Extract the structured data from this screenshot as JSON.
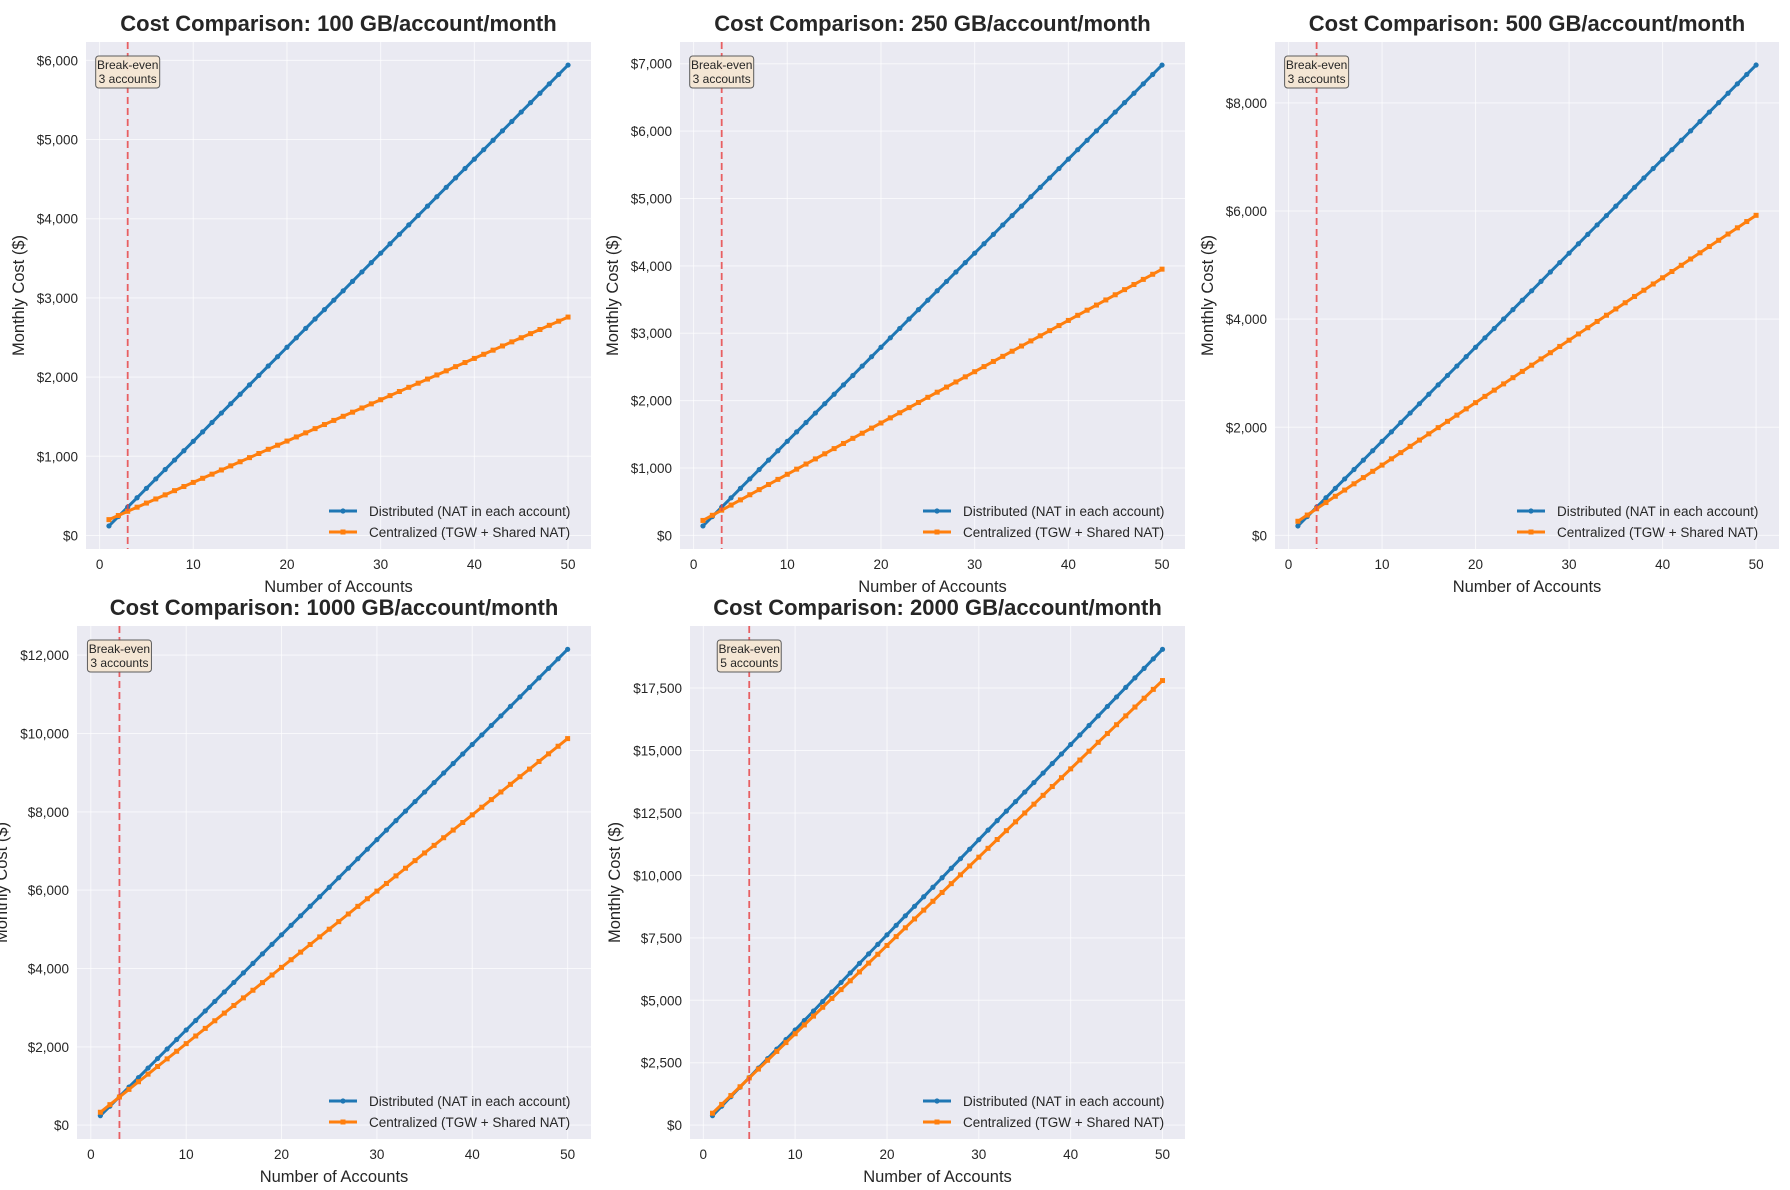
{
  "x_label": "Number of Accounts",
  "y_label": "Monthly Cost ($)",
  "legend": {
    "distributed": "Distributed (NAT in each account)",
    "centralized": "Centralized (TGW + Shared NAT)"
  },
  "colors": {
    "distributed": "#1f77b4",
    "centralized": "#ff7f0e",
    "break_even_line": "#e8474a",
    "axes_background": "#eaeaf2",
    "annotation_box": "#f5e6d3"
  },
  "chart_data": [
    {
      "type": "line",
      "title": "Cost Comparison: 100 GB/account/month",
      "xlim": [
        -1.45,
        52.45
      ],
      "ylim": [
        -171,
        6232
      ],
      "x_ticks": [
        0,
        10,
        20,
        30,
        40,
        50
      ],
      "y_ticks": [
        0,
        1000,
        2000,
        3000,
        4000,
        5000,
        6000
      ],
      "y_tick_labels": [
        "$0",
        "$1,000",
        "$2,000",
        "$3,000",
        "$4,000",
        "$5,000",
        "$6,000"
      ],
      "grid": true,
      "legend_placement": "lower-right",
      "break_even": {
        "x": 3,
        "label_line1": "Break-even",
        "label_line2": "3 accounts"
      },
      "series": [
        {
          "name": "Distributed (NAT in each account)",
          "marker": "circle",
          "values": [
            120,
            239,
            358,
            476,
            595,
            714,
            833,
            952,
            1070,
            1189,
            1308,
            1427,
            1546,
            1664,
            1783,
            1902,
            2021,
            2140,
            2258,
            2377,
            2496,
            2615,
            2734,
            2852,
            2971,
            3090,
            3209,
            3328,
            3446,
            3565,
            3684,
            3803,
            3922,
            4040,
            4159,
            4278,
            4397,
            4516,
            4634,
            4753,
            4872,
            4991,
            5110,
            5228,
            5347,
            5466,
            5585,
            5704,
            5822,
            5941
          ]
        },
        {
          "name": "Centralized (TGW + Shared NAT)",
          "marker": "square",
          "values": [
            200,
            252,
            305,
            357,
            409,
            461,
            513,
            566,
            618,
            670,
            722,
            774,
            827,
            879,
            931,
            983,
            1035,
            1088,
            1140,
            1192,
            1244,
            1296,
            1349,
            1401,
            1453,
            1505,
            1557,
            1610,
            1662,
            1714,
            1766,
            1818,
            1871,
            1923,
            1975,
            2027,
            2079,
            2132,
            2184,
            2236,
            2288,
            2340,
            2393,
            2445,
            2497,
            2549,
            2601,
            2654,
            2706,
            2758
          ]
        }
      ]
    },
    {
      "type": "line",
      "title": "Cost Comparison: 250 GB/account/month",
      "xlim": [
        -1.45,
        52.45
      ],
      "ylim": [
        -202,
        7322
      ],
      "x_ticks": [
        0,
        10,
        20,
        30,
        40,
        50
      ],
      "y_ticks": [
        0,
        1000,
        2000,
        3000,
        4000,
        5000,
        6000,
        7000
      ],
      "y_tick_labels": [
        "$0",
        "$1,000",
        "$2,000",
        "$3,000",
        "$4,000",
        "$5,000",
        "$6,000",
        "$7,000"
      ],
      "grid": true,
      "legend_placement": "lower-right",
      "break_even": {
        "x": 3,
        "label_line1": "Break-even",
        "label_line2": "3 accounts"
      },
      "series": [
        {
          "name": "Distributed (NAT in each account)",
          "marker": "circle",
          "values": [
            140,
            279,
            419,
            558,
            698,
            838,
            977,
            1117,
            1256,
            1396,
            1536,
            1675,
            1815,
            1954,
            2094,
            2234,
            2373,
            2513,
            2652,
            2792,
            2932,
            3071,
            3211,
            3350,
            3490,
            3630,
            3769,
            3909,
            4048,
            4188,
            4328,
            4467,
            4607,
            4746,
            4886,
            5026,
            5165,
            5305,
            5444,
            5584,
            5724,
            5863,
            6003,
            6142,
            6282,
            6422,
            6561,
            6701,
            6840,
            6980
          ]
        },
        {
          "name": "Centralized (TGW + Shared NAT)",
          "marker": "square",
          "values": [
            222,
            298,
            374,
            450,
            527,
            603,
            679,
            755,
            831,
            907,
            983,
            1059,
            1135,
            1211,
            1288,
            1364,
            1440,
            1516,
            1592,
            1668,
            1744,
            1820,
            1896,
            1972,
            2049,
            2125,
            2201,
            2277,
            2353,
            2429,
            2505,
            2581,
            2657,
            2733,
            2810,
            2886,
            2962,
            3038,
            3114,
            3190,
            3266,
            3342,
            3418,
            3494,
            3571,
            3647,
            3723,
            3799,
            3875,
            3951
          ]
        }
      ]
    },
    {
      "type": "line",
      "title": "Cost Comparison: 500 GB/account/month",
      "xlim": [
        -1.45,
        52.45
      ],
      "ylim": [
        -252,
        9126
      ],
      "x_ticks": [
        0,
        10,
        20,
        30,
        40,
        50
      ],
      "y_ticks": [
        0,
        2000,
        4000,
        6000,
        8000
      ],
      "y_tick_labels": [
        "$0",
        "$2,000",
        "$4,000",
        "$6,000",
        "$8,000"
      ],
      "grid": true,
      "legend_placement": "lower-right",
      "break_even": {
        "x": 3,
        "label_line1": "Break-even",
        "label_line2": "3 accounts"
      },
      "series": [
        {
          "name": "Distributed (NAT in each account)",
          "marker": "circle",
          "values": [
            174,
            348,
            522,
            696,
            870,
            1044,
            1218,
            1392,
            1566,
            1740,
            1914,
            2088,
            2262,
            2436,
            2610,
            2784,
            2958,
            3132,
            3306,
            3480,
            3654,
            3828,
            4002,
            4176,
            4350,
            4524,
            4698,
            4872,
            5046,
            5220,
            5394,
            5568,
            5742,
            5916,
            6090,
            6264,
            6438,
            6612,
            6786,
            6960,
            7134,
            7308,
            7482,
            7656,
            7830,
            8004,
            8178,
            8352,
            8526,
            8700
          ]
        },
        {
          "name": "Centralized (TGW + Shared NAT)",
          "marker": "square",
          "values": [
            261,
            376,
            492,
            607,
            723,
            838,
            954,
            1069,
            1185,
            1300,
            1416,
            1531,
            1647,
            1762,
            1878,
            1993,
            2109,
            2224,
            2340,
            2455,
            2571,
            2686,
            2802,
            2917,
            3033,
            3148,
            3264,
            3379,
            3495,
            3610,
            3726,
            3841,
            3957,
            4072,
            4188,
            4303,
            4419,
            4534,
            4650,
            4765,
            4881,
            4996,
            5112,
            5227,
            5343,
            5458,
            5574,
            5689,
            5805,
            5920
          ]
        }
      ]
    },
    {
      "type": "line",
      "title": "Cost Comparison: 1000 GB/account/month",
      "xlim": [
        -1.45,
        52.45
      ],
      "ylim": [
        -353,
        12745
      ],
      "x_ticks": [
        0,
        10,
        20,
        30,
        40,
        50
      ],
      "y_ticks": [
        0,
        2000,
        4000,
        6000,
        8000,
        10000,
        12000
      ],
      "y_tick_labels": [
        "$0",
        "$2,000",
        "$4,000",
        "$6,000",
        "$8,000",
        "$10,000",
        "$12,000"
      ],
      "grid": true,
      "legend_placement": "lower-right",
      "break_even": {
        "x": 3,
        "label_line1": "Break-even",
        "label_line2": "3 accounts"
      },
      "series": [
        {
          "name": "Distributed (NAT in each account)",
          "marker": "circle",
          "values": [
            243,
            486,
            729,
            972,
            1215,
            1458,
            1701,
            1944,
            2187,
            2430,
            2673,
            2916,
            3159,
            3402,
            3645,
            3888,
            4131,
            4374,
            4617,
            4860,
            5103,
            5346,
            5589,
            5832,
            6075,
            6318,
            6561,
            6804,
            7047,
            7290,
            7533,
            7776,
            8019,
            8262,
            8505,
            8748,
            8991,
            9234,
            9477,
            9720,
            9963,
            10206,
            10449,
            10692,
            10935,
            11178,
            11421,
            11664,
            11907,
            12150
          ]
        },
        {
          "name": "Centralized (TGW + Shared NAT)",
          "marker": "square",
          "values": [
            330,
            524,
            719,
            914,
            1109,
            1303,
            1498,
            1693,
            1887,
            2082,
            2277,
            2471,
            2666,
            2861,
            3056,
            3250,
            3445,
            3640,
            3834,
            4029,
            4224,
            4418,
            4613,
            4808,
            5003,
            5197,
            5392,
            5587,
            5781,
            5976,
            6171,
            6365,
            6560,
            6755,
            6950,
            7144,
            7339,
            7534,
            7728,
            7923,
            8118,
            8312,
            8507,
            8702,
            8897,
            9091,
            9286,
            9481,
            9675,
            9870
          ]
        }
      ]
    },
    {
      "type": "line",
      "title": "Cost Comparison: 2000 GB/account/month",
      "xlim": [
        -1.45,
        52.45
      ],
      "ylim": [
        -553,
        19984
      ],
      "x_ticks": [
        0,
        10,
        20,
        30,
        40,
        50
      ],
      "y_ticks": [
        0,
        2500,
        5000,
        7500,
        10000,
        12500,
        15000,
        17500
      ],
      "y_tick_labels": [
        "$0",
        "$2,500",
        "$5,000",
        "$7,500",
        "$10,000",
        "$12,500",
        "$15,000",
        "$17,500"
      ],
      "grid": true,
      "legend_placement": "lower-right",
      "break_even": {
        "x": 5,
        "label_line1": "Break-even",
        "label_line2": "5 accounts"
      },
      "series": [
        {
          "name": "Distributed (NAT in each account)",
          "marker": "circle",
          "values": [
            381,
            762,
            1143,
            1524,
            1905,
            2286,
            2667,
            3048,
            3429,
            3810,
            4191,
            4572,
            4953,
            5334,
            5715,
            6096,
            6477,
            6858,
            7239,
            7620,
            8001,
            8382,
            8763,
            9144,
            9525,
            9906,
            10287,
            10668,
            11049,
            11430,
            11811,
            12192,
            12573,
            12954,
            13335,
            13716,
            14097,
            14478,
            14859,
            15240,
            15621,
            16002,
            16383,
            16764,
            17145,
            17526,
            17907,
            18288,
            18669,
            19050
          ]
        },
        {
          "name": "Centralized (TGW + Shared NAT)",
          "marker": "square",
          "values": [
            479,
            832,
            1186,
            1539,
            1893,
            2246,
            2600,
            2953,
            3307,
            3660,
            4014,
            4367,
            4721,
            5074,
            5428,
            5781,
            6135,
            6488,
            6842,
            7195,
            7549,
            7902,
            8256,
            8609,
            8963,
            9316,
            9670,
            10023,
            10377,
            10730,
            11084,
            11437,
            11791,
            12144,
            12498,
            12851,
            13205,
            13558,
            13912,
            14265,
            14619,
            14972,
            15326,
            15679,
            16033,
            16386,
            16740,
            17093,
            17447,
            17800
          ]
        }
      ]
    }
  ]
}
